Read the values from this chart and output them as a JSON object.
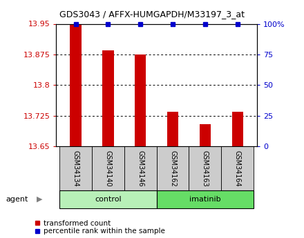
{
  "title": "GDS3043 / AFFX-HUMGAPDH/M33197_3_at",
  "samples": [
    "GSM34134",
    "GSM34140",
    "GSM34146",
    "GSM34162",
    "GSM34163",
    "GSM34164"
  ],
  "red_values": [
    13.95,
    13.885,
    13.875,
    13.735,
    13.705,
    13.735
  ],
  "ymin": 13.65,
  "ymax": 13.95,
  "yticks": [
    13.65,
    13.725,
    13.8,
    13.875,
    13.95
  ],
  "ytick_labels": [
    "13.65",
    "13.725",
    "13.8",
    "13.875",
    "13.95"
  ],
  "right_yticks": [
    0,
    25,
    50,
    75,
    100
  ],
  "right_ytick_labels": [
    "0",
    "25",
    "50",
    "75",
    "100%"
  ],
  "grid_lines": [
    13.725,
    13.8,
    13.875
  ],
  "groups": [
    {
      "label": "control",
      "start": 0,
      "end": 3,
      "color": "#b8f0b8"
    },
    {
      "label": "imatinib",
      "start": 3,
      "end": 6,
      "color": "#66dd66"
    }
  ],
  "bar_color": "#cc0000",
  "blue_marker_color": "#0000cc",
  "label_area_color": "#cccccc",
  "agent_label": "agent",
  "legend_red": "transformed count",
  "legend_blue": "percentile rank within the sample",
  "bar_width": 0.35,
  "blue_marker_size": 5,
  "title_fontsize": 9,
  "tick_fontsize": 8,
  "sample_fontsize": 7,
  "group_fontsize": 8,
  "legend_fontsize": 7.5
}
